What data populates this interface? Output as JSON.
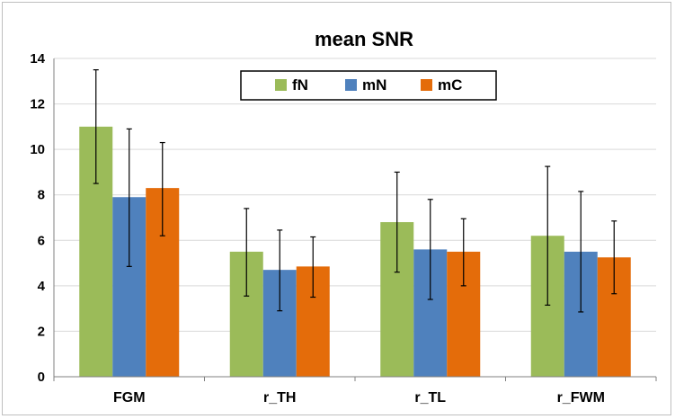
{
  "chart_data": {
    "type": "bar",
    "title": "mean SNR",
    "xlabel": "",
    "ylabel": "",
    "categories": [
      "FGM",
      "r_TH",
      "r_TL",
      "r_FWM"
    ],
    "ylim": [
      0,
      14
    ],
    "yticks": [
      0,
      2,
      4,
      6,
      8,
      10,
      12,
      14
    ],
    "grid": true,
    "legend_position": "top-center",
    "series": [
      {
        "name": "fN",
        "color": "#9bbb59",
        "values": [
          11.0,
          5.5,
          6.8,
          6.2
        ],
        "err_low": [
          8.5,
          3.55,
          4.6,
          3.15
        ],
        "err_high": [
          13.5,
          7.4,
          9.0,
          9.25
        ]
      },
      {
        "name": "mN",
        "color": "#4f81bd",
        "values": [
          7.9,
          4.7,
          5.6,
          5.5
        ],
        "err_low": [
          4.85,
          2.9,
          3.4,
          2.85
        ],
        "err_high": [
          10.9,
          6.45,
          7.8,
          8.15
        ]
      },
      {
        "name": "mC",
        "color": "#e46c0a",
        "values": [
          8.3,
          4.85,
          5.5,
          5.25
        ],
        "err_low": [
          6.2,
          3.5,
          4.0,
          3.65
        ],
        "err_high": [
          10.3,
          6.15,
          6.95,
          6.85
        ]
      }
    ]
  }
}
